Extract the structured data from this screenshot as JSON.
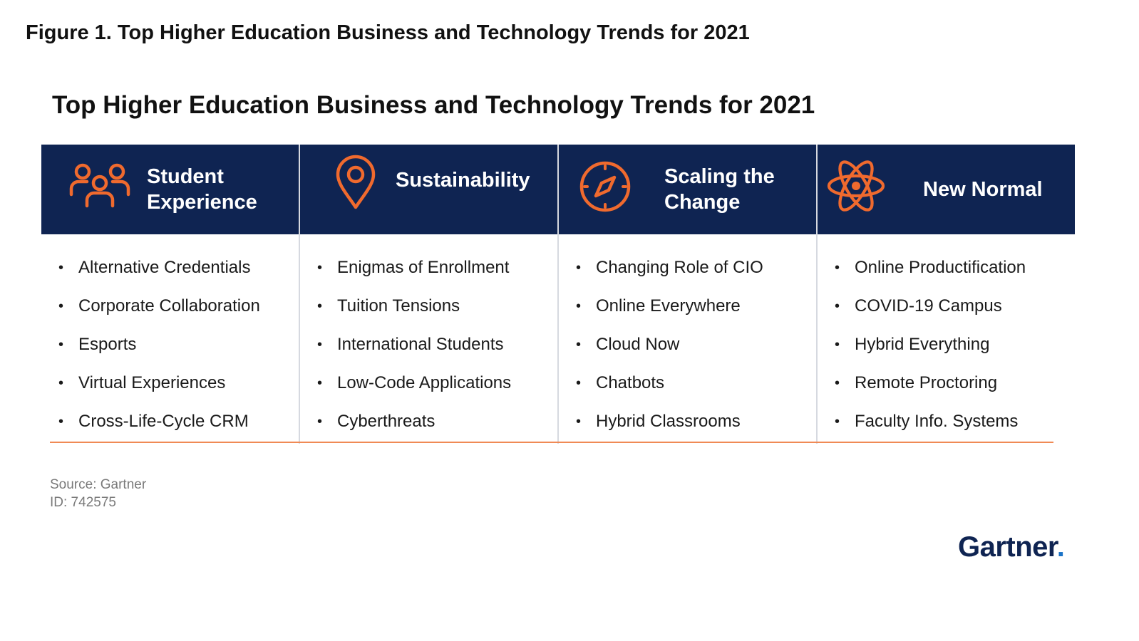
{
  "figure_caption": "Figure 1. Top Higher Education Business and Technology Trends for 2021",
  "panel_title": "Top Higher Education Business and Technology Trends for 2021",
  "colors": {
    "header_bg": "#0f2452",
    "accent": "#f06a2e",
    "rule": "#f08a55"
  },
  "columns": [
    {
      "icon": "people-icon",
      "header_line1": "Student",
      "header_line2": "Experience",
      "items": [
        "Alternative  Credentials",
        "Corporate Collaboration",
        "Esports",
        "Virtual Experiences",
        "Cross-Life-Cycle CRM"
      ]
    },
    {
      "icon": "location-pin-icon",
      "header_line1": "Sustainability",
      "header_line2": "",
      "items": [
        "Enigmas of Enrollment",
        "Tuition Tensions",
        "International  Students",
        "Low-Code Applications",
        "Cyberthreats"
      ]
    },
    {
      "icon": "compass-icon",
      "header_line1": "Scaling the",
      "header_line2": "Change",
      "items": [
        "Changing Role of CIO",
        "Online Everywhere",
        "Cloud Now",
        "Chatbots",
        "Hybrid Classrooms"
      ]
    },
    {
      "icon": "atom-icon",
      "header_line1": "New Normal",
      "header_line2": "",
      "items": [
        "Online Productification",
        "COVID-19 Campus",
        "Hybrid Everything",
        "Remote Proctoring",
        "Faculty Info.  Systems"
      ]
    }
  ],
  "bullet": "•",
  "source_line": "Source: Gartner",
  "id_line": "ID:  742575",
  "logo_text": "Gartner",
  "logo_dot": "."
}
